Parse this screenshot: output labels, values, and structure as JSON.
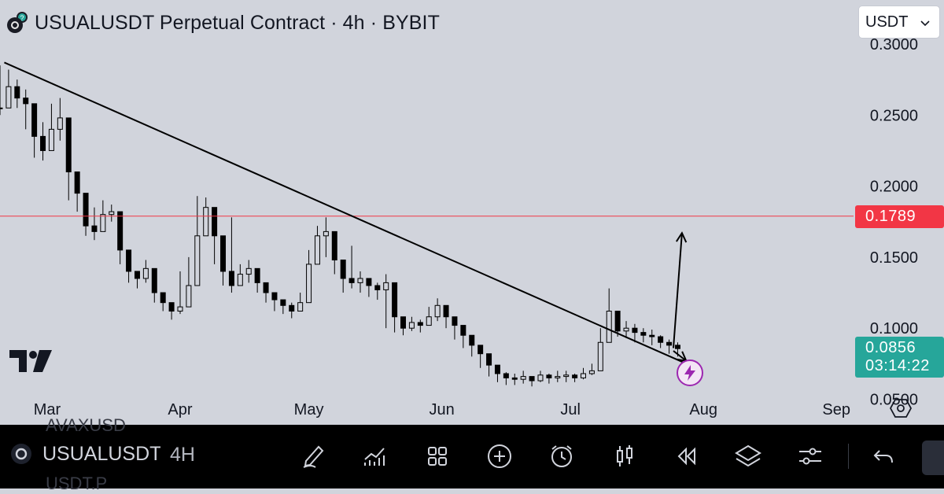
{
  "header": {
    "title": "USUALUSDT Perpetual Contract · 4h · BYBIT",
    "currency": "USDT"
  },
  "colors": {
    "background": "#d1d4dc",
    "price_line": "#f23645",
    "last_price": "#26a69a",
    "trendline": "#000000",
    "candles": "#000000",
    "accent_purple": "#9c27b0"
  },
  "price_tags": {
    "level": "0.1789",
    "last_price": "0.0856",
    "countdown": "03:14:22"
  },
  "chart_data": {
    "type": "candlestick",
    "title": "USUALUSDT Perpetual Contract · 4h · BYBIT",
    "x_labels": [
      "Mar",
      "Apr",
      "May",
      "Jun",
      "Jul",
      "Aug",
      "Sep"
    ],
    "y_tick_labels": [
      "0.3000",
      "0.2500",
      "0.2000",
      "0.1500",
      "0.1000",
      "0.0500"
    ],
    "ylim": [
      0.032,
      0.331
    ],
    "x_range": [
      "2025-02-18",
      "2025-09-05"
    ],
    "grid": false,
    "horizontal_line": 0.1789,
    "last_price": 0.0856,
    "trendline": {
      "from": [
        "2025-02-19",
        0.287
      ],
      "to": [
        "2025-07-28",
        0.075
      ]
    },
    "projection_arrow": {
      "from": [
        "2025-07-25",
        0.086
      ],
      "to": [
        "2025-07-27",
        0.167
      ]
    },
    "projection_arrow_2": {
      "from": [
        "2025-07-25",
        0.084
      ],
      "to": [
        "2025-07-28",
        0.077
      ]
    },
    "series": [
      {
        "dates": [
          "2025-02-18",
          "2025-02-20",
          "2025-02-22",
          "2025-02-24",
          "2025-02-26",
          "2025-02-28",
          "2025-03-02",
          "2025-03-04",
          "2025-03-06",
          "2025-03-08",
          "2025-03-10",
          "2025-03-12",
          "2025-03-14",
          "2025-03-16",
          "2025-03-18",
          "2025-03-20",
          "2025-03-22",
          "2025-03-24",
          "2025-03-26",
          "2025-03-28",
          "2025-03-30",
          "2025-04-01",
          "2025-04-03",
          "2025-04-05",
          "2025-04-07",
          "2025-04-09",
          "2025-04-11",
          "2025-04-13",
          "2025-04-15",
          "2025-04-17",
          "2025-04-19",
          "2025-04-21",
          "2025-04-23",
          "2025-04-25",
          "2025-04-27",
          "2025-04-29",
          "2025-05-01",
          "2025-05-03",
          "2025-05-05",
          "2025-05-07",
          "2025-05-09",
          "2025-05-11",
          "2025-05-13",
          "2025-05-15",
          "2025-05-17",
          "2025-05-19",
          "2025-05-21",
          "2025-05-23",
          "2025-05-25",
          "2025-05-27",
          "2025-05-29",
          "2025-05-31",
          "2025-06-02",
          "2025-06-04",
          "2025-06-06",
          "2025-06-08",
          "2025-06-10",
          "2025-06-12",
          "2025-06-14",
          "2025-06-16",
          "2025-06-18",
          "2025-06-20",
          "2025-06-22",
          "2025-06-24",
          "2025-06-26",
          "2025-06-28",
          "2025-06-30",
          "2025-07-02",
          "2025-07-04",
          "2025-07-06",
          "2025-07-08",
          "2025-07-10",
          "2025-07-12",
          "2025-07-14",
          "2025-07-16",
          "2025-07-18",
          "2025-07-20",
          "2025-07-22",
          "2025-07-24",
          "2025-07-26"
        ],
        "close": [
          0.255,
          0.27,
          0.262,
          0.258,
          0.235,
          0.225,
          0.24,
          0.248,
          0.21,
          0.195,
          0.172,
          0.168,
          0.18,
          0.182,
          0.155,
          0.14,
          0.135,
          0.142,
          0.125,
          0.118,
          0.112,
          0.115,
          0.13,
          0.165,
          0.185,
          0.165,
          0.14,
          0.13,
          0.138,
          0.142,
          0.132,
          0.125,
          0.12,
          0.116,
          0.112,
          0.118,
          0.145,
          0.165,
          0.168,
          0.148,
          0.135,
          0.132,
          0.135,
          0.13,
          0.127,
          0.132,
          0.108,
          0.1,
          0.104,
          0.102,
          0.108,
          0.116,
          0.108,
          0.102,
          0.095,
          0.088,
          0.082,
          0.074,
          0.068,
          0.065,
          0.064,
          0.066,
          0.063,
          0.067,
          0.065,
          0.066,
          0.067,
          0.065,
          0.068,
          0.07,
          0.09,
          0.112,
          0.098,
          0.1,
          0.097,
          0.095,
          0.094,
          0.09,
          0.088,
          0.0856
        ],
        "high": [
          0.285,
          0.282,
          0.275,
          0.268,
          0.25,
          0.245,
          0.258,
          0.262,
          0.22,
          0.205,
          0.18,
          0.185,
          0.19,
          0.187,
          0.165,
          0.15,
          0.14,
          0.148,
          0.13,
          0.124,
          0.118,
          0.14,
          0.15,
          0.193,
          0.192,
          0.175,
          0.148,
          0.178,
          0.145,
          0.148,
          0.14,
          0.13,
          0.125,
          0.12,
          0.118,
          0.125,
          0.155,
          0.172,
          0.178,
          0.158,
          0.14,
          0.158,
          0.14,
          0.135,
          0.132,
          0.138,
          0.115,
          0.105,
          0.108,
          0.106,
          0.115,
          0.121,
          0.112,
          0.106,
          0.098,
          0.092,
          0.085,
          0.078,
          0.071,
          0.069,
          0.068,
          0.07,
          0.066,
          0.07,
          0.068,
          0.07,
          0.07,
          0.068,
          0.072,
          0.075,
          0.1,
          0.128,
          0.11,
          0.105,
          0.103,
          0.1,
          0.099,
          0.095,
          0.092,
          0.09
        ],
        "low": [
          0.25,
          0.258,
          0.255,
          0.24,
          0.22,
          0.218,
          0.232,
          0.232,
          0.19,
          0.182,
          0.165,
          0.162,
          0.172,
          0.175,
          0.145,
          0.132,
          0.128,
          0.132,
          0.118,
          0.112,
          0.106,
          0.11,
          0.125,
          0.16,
          0.165,
          0.145,
          0.13,
          0.125,
          0.13,
          0.132,
          0.125,
          0.118,
          0.112,
          0.11,
          0.107,
          0.112,
          0.138,
          0.158,
          0.15,
          0.138,
          0.125,
          0.128,
          0.125,
          0.122,
          0.12,
          0.1,
          0.097,
          0.095,
          0.098,
          0.097,
          0.104,
          0.105,
          0.1,
          0.092,
          0.086,
          0.08,
          0.072,
          0.066,
          0.062,
          0.06,
          0.06,
          0.061,
          0.059,
          0.062,
          0.061,
          0.062,
          0.062,
          0.062,
          0.064,
          0.067,
          0.085,
          0.095,
          0.094,
          0.093,
          0.09,
          0.09,
          0.088,
          0.086,
          0.082,
          0.08
        ]
      }
    ]
  },
  "toolbar": {
    "symbol": "USUALUSDT",
    "interval": "4H",
    "ghost_top": "AVAXUSD",
    "ghost_bottom": "USDT.P",
    "icons": [
      "pencil-icon",
      "indicators-icon",
      "layout-grid-icon",
      "add-icon",
      "alert-clock-icon",
      "candles-icon",
      "replay-icon",
      "layers-icon",
      "settings-sliders-icon",
      "undo-icon"
    ]
  }
}
